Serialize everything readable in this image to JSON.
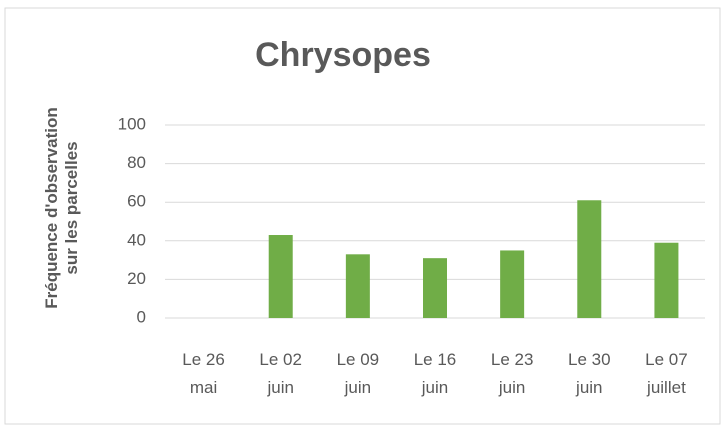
{
  "chart_data": {
    "type": "bar",
    "title": "Chrysopes",
    "ylabel": "Fréquence d'observation sur les parcelles",
    "categories": [
      "Le 26 mai",
      "Le 02 juin",
      "Le 09 juin",
      "Le 16 juin",
      "Le 23 juin",
      "Le 30 juin",
      "Le 07 juillet"
    ],
    "values": [
      0,
      43,
      33,
      31,
      35,
      61,
      39
    ],
    "color": "#70ad47",
    "ylim": [
      0,
      100
    ],
    "yticks": [
      0,
      20,
      40,
      60,
      80,
      100
    ],
    "grid": true
  }
}
